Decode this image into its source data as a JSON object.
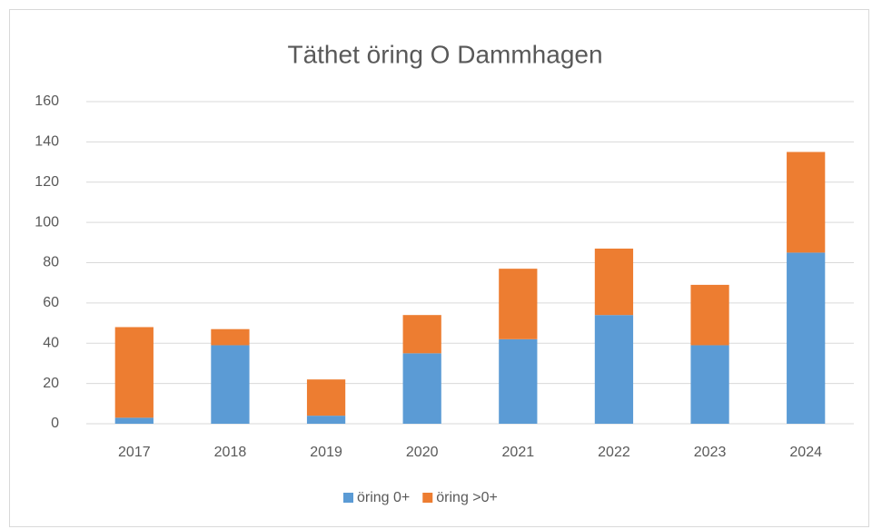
{
  "chart_data": {
    "type": "stacked-bar",
    "title": "Täthet öring O Dammhagen",
    "categories": [
      "2017",
      "2018",
      "2019",
      "2020",
      "2021",
      "2022",
      "2023",
      "2024"
    ],
    "series": [
      {
        "name": "öring 0+",
        "color": "#5b9bd5",
        "values": [
          3,
          39,
          4,
          35,
          42,
          54,
          39,
          85
        ]
      },
      {
        "name": "öring >0+",
        "color": "#ed7d31",
        "values": [
          45,
          8,
          18,
          19,
          35,
          33,
          30,
          50
        ]
      }
    ],
    "ylim": [
      0,
      160
    ],
    "yticks": [
      0,
      20,
      40,
      60,
      80,
      100,
      120,
      140,
      160
    ],
    "grid": true,
    "legend": "bottom"
  }
}
